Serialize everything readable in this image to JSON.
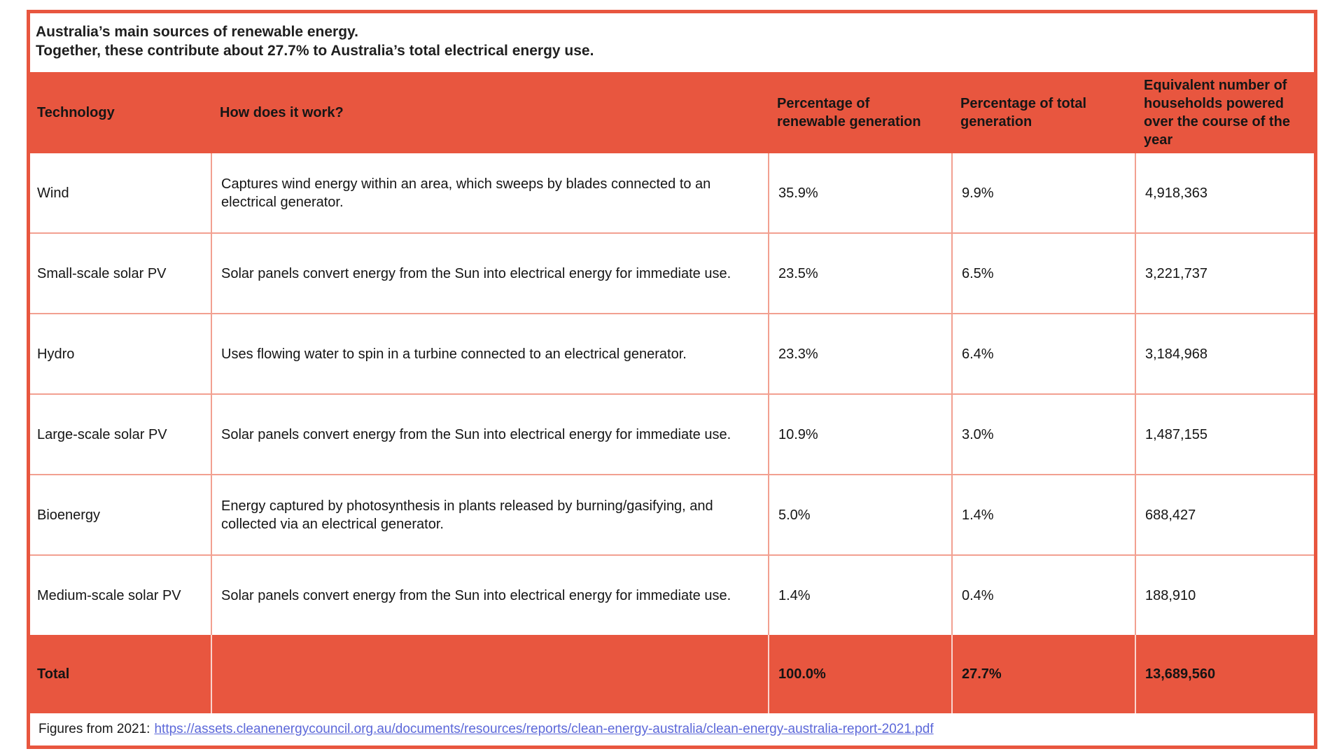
{
  "title": {
    "line1": "Australia’s main sources of renewable energy.",
    "line2": "Together, these contribute about 27.7% to Australia’s total electrical energy use."
  },
  "table": {
    "columns": [
      "Technology",
      "How does it work?",
      "Percentage of renewable generation",
      "Percentage of total generation",
      "Equivalent number of households powered over the course of the year"
    ],
    "rows": [
      {
        "technology": "Wind",
        "how": "Captures wind energy within an area, which sweeps by blades connected to an electrical generator.",
        "pct_renewable": "35.9%",
        "pct_total": "9.9%",
        "households": "4,918,363"
      },
      {
        "technology": "Small-scale solar PV",
        "how": "Solar panels convert energy from the Sun into electrical energy for immediate use.",
        "pct_renewable": "23.5%",
        "pct_total": "6.5%",
        "households": "3,221,737"
      },
      {
        "technology": "Hydro",
        "how": "Uses flowing water to spin in a turbine connected to an electrical generator.",
        "pct_renewable": "23.3%",
        "pct_total": "6.4%",
        "households": "3,184,968"
      },
      {
        "technology": "Large-scale solar PV",
        "how": "Solar panels convert energy from the Sun into electrical energy for immediate use.",
        "pct_renewable": "10.9%",
        "pct_total": "3.0%",
        "households": "1,487,155"
      },
      {
        "technology": "Bioenergy",
        "how": "Energy captured by photosynthesis in plants released by burning/gasifying, and collected via an electrical generator.",
        "pct_renewable": "5.0%",
        "pct_total": "1.4%",
        "households": "688,427"
      },
      {
        "technology": "Medium-scale solar PV",
        "how": "Solar panels convert energy from the Sun into electrical energy for immediate use.",
        "pct_renewable": "1.4%",
        "pct_total": "0.4%",
        "households": "188,910"
      }
    ],
    "total": {
      "label": "Total",
      "pct_renewable": "100.0%",
      "pct_total": "27.7%",
      "households": "13,689,560"
    }
  },
  "footer": {
    "prefix": "Figures from 2021:",
    "link": "https://assets.cleanenergycouncil.org.au/documents/resources/reports/clean-energy-australia/clean-energy-australia-report-2021.pdf"
  },
  "colors": {
    "accent_red": "#E8563F",
    "grid_salmon": "#F2A091",
    "link_blue": "#5C68D9"
  }
}
